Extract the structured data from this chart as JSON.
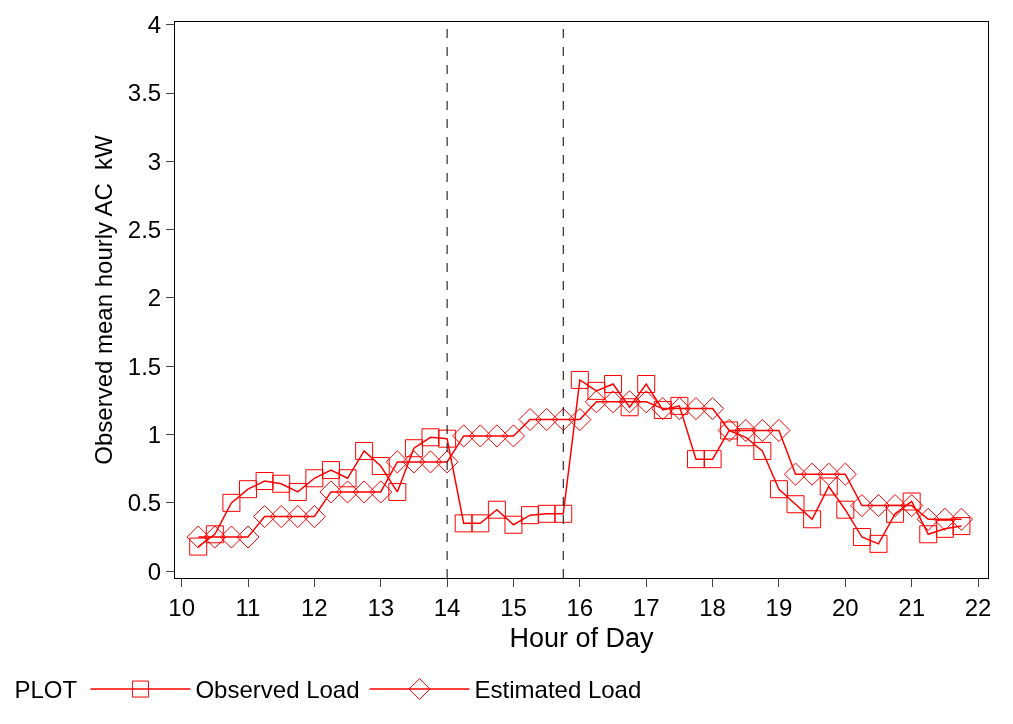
{
  "chart_data": {
    "type": "line",
    "xlabel": "Hour of Day",
    "ylabel": "Observed mean hourly AC  kW",
    "legend_title": "PLOT",
    "legend": "bottom",
    "xlim": [
      9.9,
      22.15
    ],
    "xticks": [
      10,
      11,
      12,
      13,
      14,
      15,
      16,
      17,
      18,
      19,
      20,
      21,
      22
    ],
    "ylim": [
      -0.05,
      4.02
    ],
    "yticks": [
      0,
      0.5,
      1,
      1.5,
      2,
      2.5,
      3,
      3.5,
      4
    ],
    "x": [
      10.25,
      10.5,
      10.75,
      11,
      11.25,
      11.5,
      11.75,
      12,
      12.25,
      12.5,
      12.75,
      13,
      13.25,
      13.5,
      13.75,
      14,
      14.25,
      14.5,
      14.75,
      15,
      15.25,
      15.5,
      15.75,
      16,
      16.25,
      16.5,
      16.75,
      17,
      17.25,
      17.5,
      17.75,
      18,
      18.25,
      18.5,
      18.75,
      19,
      19.25,
      19.5,
      19.75,
      20,
      20.25,
      20.5,
      20.75,
      21,
      21.25,
      21.5,
      21.75
    ],
    "series": [
      {
        "name": "Observed Load",
        "color": "#ff0000",
        "marker": "square",
        "values": [
          0.18,
          0.27,
          0.5,
          0.6,
          0.66,
          0.64,
          0.58,
          0.68,
          0.74,
          0.68,
          0.88,
          0.77,
          0.58,
          0.9,
          0.98,
          0.97,
          0.35,
          0.35,
          0.45,
          0.34,
          0.41,
          0.42,
          0.42,
          1.4,
          1.32,
          1.37,
          1.2,
          1.37,
          1.18,
          1.21,
          0.82,
          0.82,
          1.03,
          0.98,
          0.88,
          0.6,
          0.49,
          0.38,
          0.62,
          0.45,
          0.25,
          0.2,
          0.42,
          0.51,
          0.27,
          0.31,
          0.33
        ]
      },
      {
        "name": "Estimated Load",
        "color": "#ff0000",
        "marker": "diamond",
        "values": [
          0.25,
          0.25,
          0.25,
          0.25,
          0.4,
          0.4,
          0.4,
          0.4,
          0.58,
          0.58,
          0.58,
          0.58,
          0.8,
          0.8,
          0.8,
          0.8,
          0.99,
          0.99,
          0.99,
          0.99,
          1.11,
          1.11,
          1.11,
          1.11,
          1.24,
          1.24,
          1.24,
          1.24,
          1.19,
          1.19,
          1.19,
          1.19,
          1.03,
          1.03,
          1.03,
          1.03,
          0.71,
          0.71,
          0.71,
          0.71,
          0.48,
          0.48,
          0.48,
          0.48,
          0.38,
          0.38,
          0.38
        ]
      }
    ],
    "ref_lines": [
      {
        "axis": "x",
        "value": 14,
        "color": "#000000",
        "line_style": "dashed"
      },
      {
        "axis": "x",
        "value": 15.75,
        "color": "#000000",
        "line_style": "dashed"
      }
    ]
  }
}
